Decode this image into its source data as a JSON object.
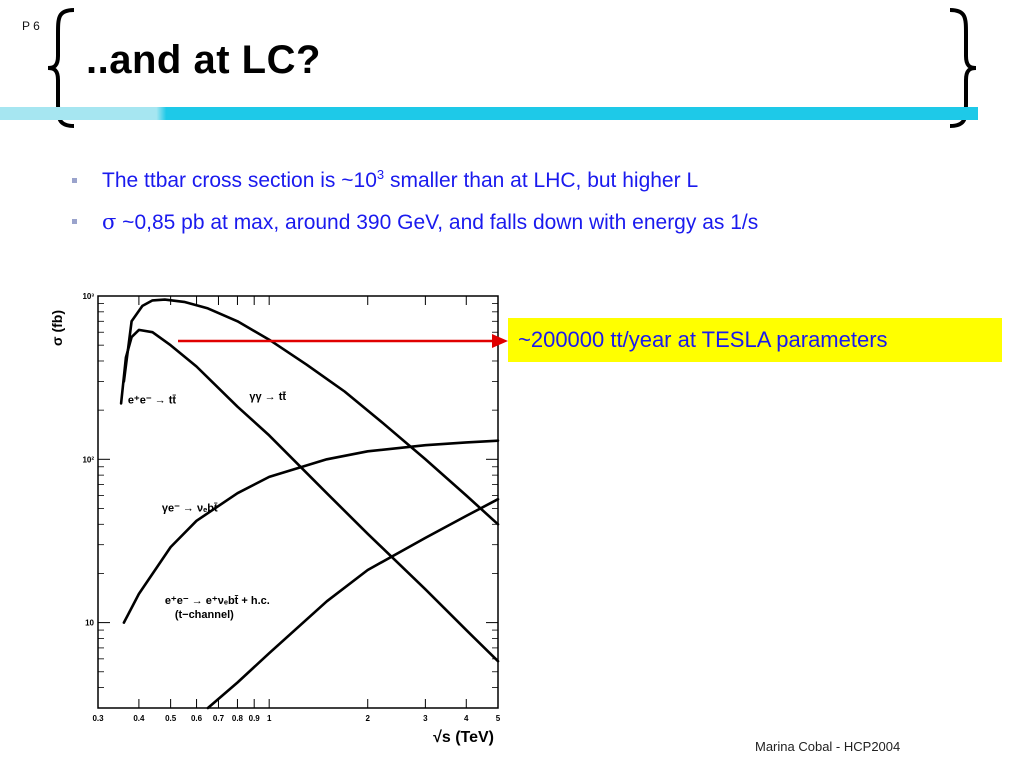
{
  "slide": {
    "page_number": "P 6",
    "title": "..and at LC?",
    "accent_color": "#1ec9e8",
    "accent_color_light": "#a6e6f1",
    "bullets": [
      {
        "pre": "The ttbar cross section is ~10",
        "sup": "3",
        "post": " smaller than at LHC, but higher L"
      },
      {
        "symbol": "σ",
        "text": " ~0,85 pb at max, around 390 GeV, and falls down with energy as 1/s"
      }
    ],
    "callout": "~200000 tt/year at TESLA parameters",
    "callout_color": "#ffff00",
    "arrow_color": "#e00000",
    "footer": "Marina Cobal - HCP2004"
  },
  "chart_data": {
    "type": "line",
    "x_scale": "log",
    "y_scale": "log",
    "xlim": [
      0.3,
      5
    ],
    "ylim": [
      3,
      1000
    ],
    "xlabel": "√s (TeV)",
    "ylabel": "σ (fb)",
    "x_ticks": [
      0.3,
      0.4,
      0.5,
      0.6,
      0.7,
      0.8,
      0.9,
      1,
      2,
      3,
      4,
      5
    ],
    "x_tick_labels": [
      "0.3",
      "0.4",
      "0.5",
      "0.6",
      "0.7",
      "0.8",
      "0.9",
      "1",
      "2",
      "3",
      "4",
      "5"
    ],
    "y_ticks": [
      10,
      100,
      1000
    ],
    "y_tick_labels": [
      "10",
      "10²",
      "10³"
    ],
    "series": [
      {
        "name": "γγ → tt̄",
        "label_at": [
          0.87,
          230
        ],
        "x": [
          0.36,
          0.38,
          0.41,
          0.44,
          0.48,
          0.55,
          0.65,
          0.8,
          1.0,
          1.3,
          1.7,
          2.2,
          3.0,
          4.0,
          5.0
        ],
        "y": [
          300,
          700,
          870,
          940,
          950,
          920,
          840,
          700,
          540,
          380,
          260,
          170,
          100,
          60,
          40
        ]
      },
      {
        "name": "e⁺e⁻ → tt̄",
        "label_at": [
          0.37,
          220
        ],
        "x": [
          0.353,
          0.365,
          0.38,
          0.4,
          0.44,
          0.5,
          0.6,
          0.8,
          1.0,
          1.5,
          2.0,
          3.0,
          4.0,
          5.0
        ],
        "y": [
          220,
          420,
          560,
          620,
          600,
          500,
          370,
          210,
          140,
          62,
          35,
          16,
          9,
          5.8
        ]
      },
      {
        "name": "γe⁻ → νₑbt̄",
        "label_at": [
          0.47,
          48
        ],
        "x": [
          0.36,
          0.4,
          0.5,
          0.6,
          0.8,
          1.0,
          1.5,
          2.0,
          3.0,
          4.0,
          5.0
        ],
        "y": [
          10,
          15,
          29,
          42,
          62,
          78,
          100,
          112,
          122,
          127,
          130
        ]
      },
      {
        "name": "e⁺e⁻ → e⁺νₑbt̄ + h.c.",
        "name_line2": "(t−channel)",
        "label_at": [
          0.48,
          13
        ],
        "x": [
          0.65,
          0.8,
          1.0,
          1.5,
          2.0,
          3.0,
          4.0,
          5.0
        ],
        "y": [
          3,
          4.3,
          6.5,
          13.5,
          21,
          33,
          45,
          57
        ]
      }
    ]
  }
}
